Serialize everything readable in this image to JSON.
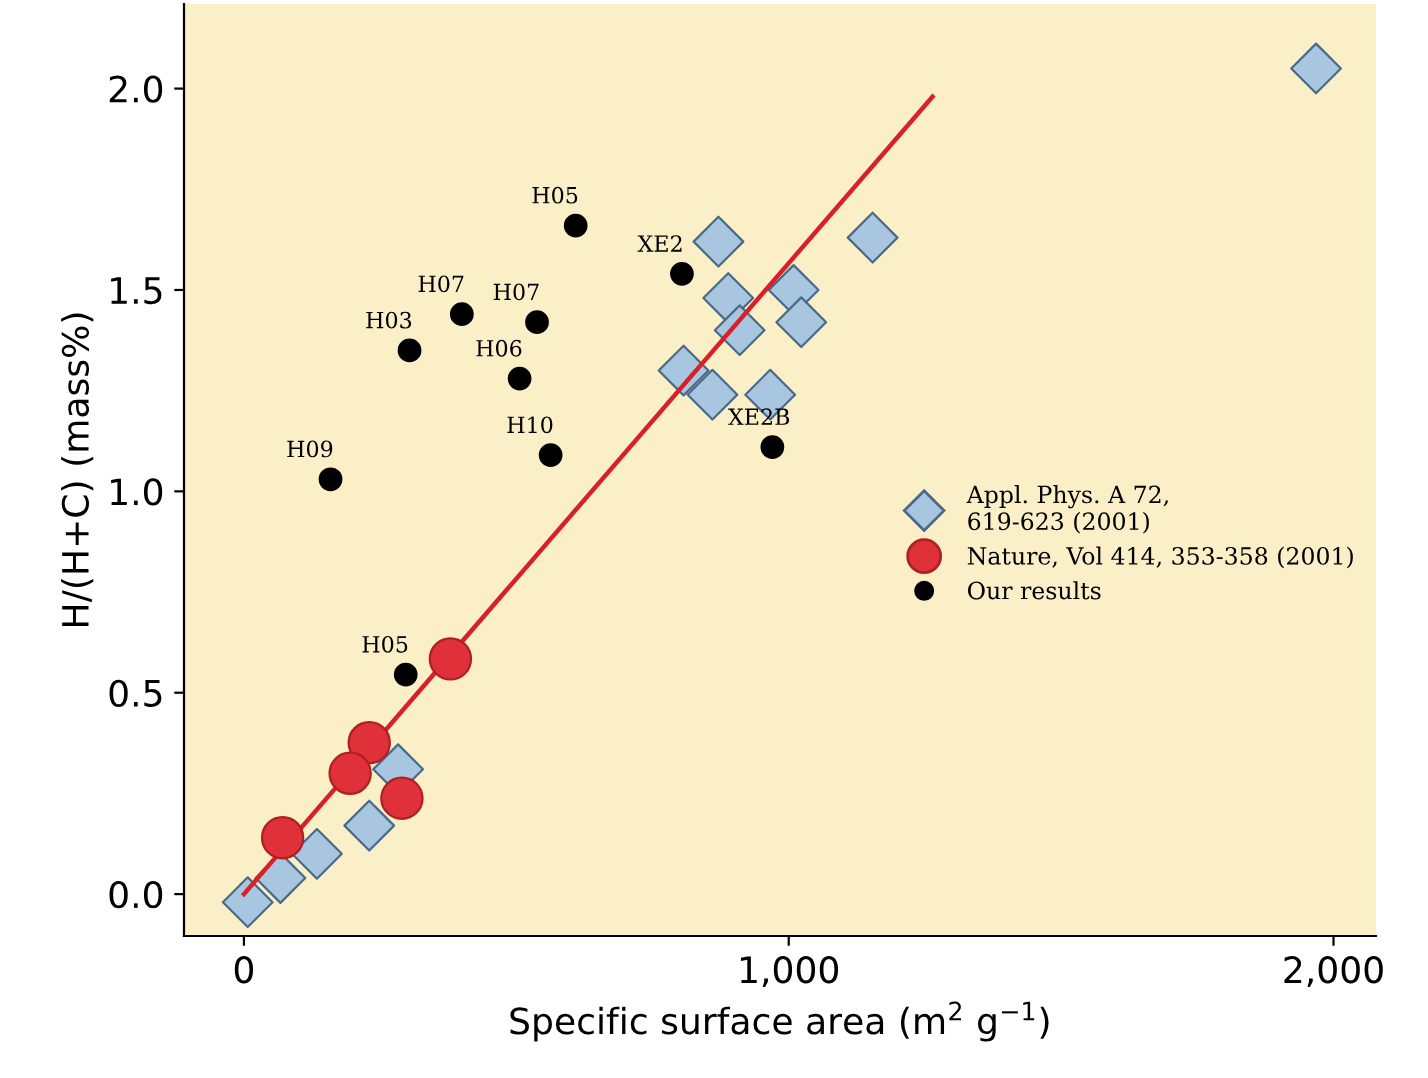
{
  "chart_data": {
    "type": "scatter",
    "xlabel": "Specific surface area (m$^{2}$ g$^{−1}$)",
    "ylabel": "H/(H+C) (mass%)",
    "xlim": [
      -110,
      2078
    ],
    "ylim": [
      -0.104,
      2.21
    ],
    "xticks": [
      0,
      {
        "value": 1000,
        "label": "1,000"
      },
      {
        "value": 2000,
        "label": "2,000"
      }
    ],
    "yticks": [
      {
        "value": 0,
        "label": "0.0"
      },
      {
        "value": 0.5,
        "label": "0.5"
      },
      {
        "value": 1,
        "label": "1.0"
      },
      {
        "value": 1.5,
        "label": "1.5"
      },
      {
        "value": 2,
        "label": "2.0"
      }
    ],
    "grid": false,
    "legend": "right",
    "series": [
      {
        "type": "line",
        "color": "#d8202a",
        "line_style": "solid",
        "marker": "none",
        "x": [
          0,
          1264
        ],
        "values": [
          0,
          1.98
        ]
      },
      {
        "name": "Appl. Phys. A 72,\n619-623 (2001)",
        "marker": "diamond",
        "color": "#a9c6e0",
        "x": [
          7,
          67,
          134,
          230,
          283,
          871,
          889,
          910,
          1009,
          1023,
          807,
          860,
          966,
          1154,
          1968
        ],
        "values": [
          -0.02,
          0.04,
          0.1,
          0.17,
          0.31,
          1.62,
          1.48,
          1.4,
          1.5,
          1.42,
          1.3,
          1.24,
          1.24,
          1.63,
          2.05
        ]
      },
      {
        "name": "Nature, Vol 414, 353-358 (2001)",
        "marker": "circle",
        "color": "#e0303a",
        "x": [
          379,
          230,
          195,
          290,
          71
        ],
        "values": [
          0.584,
          0.376,
          0.3,
          0.238,
          0.14
        ]
      },
      {
        "name": "Our results",
        "marker": "circle",
        "color": "#000000",
        "x": [
          159,
          304,
          400,
          538,
          506,
          563,
          609,
          804,
          970,
          297
        ],
        "values": [
          1.03,
          1.35,
          1.44,
          1.42,
          1.28,
          1.09,
          1.66,
          1.54,
          1.11,
          0.545
        ]
      }
    ],
    "annotations": [
      {
        "text": "H09",
        "x": 159,
        "y": 1.03
      },
      {
        "text": "H03",
        "x": 304,
        "y": 1.35
      },
      {
        "text": "H07",
        "x": 400,
        "y": 1.44
      },
      {
        "text": "H07",
        "x": 538,
        "y": 1.42
      },
      {
        "text": "H06",
        "x": 506,
        "y": 1.28
      },
      {
        "text": "H10",
        "x": 563,
        "y": 1.09
      },
      {
        "text": "H05",
        "x": 609,
        "y": 1.66
      },
      {
        "text": "XE2",
        "x": 804,
        "y": 1.54
      },
      {
        "text": "XE2B",
        "x": 970,
        "y": 1.11
      },
      {
        "text": "H05",
        "x": 297,
        "y": 0.545
      }
    ]
  }
}
